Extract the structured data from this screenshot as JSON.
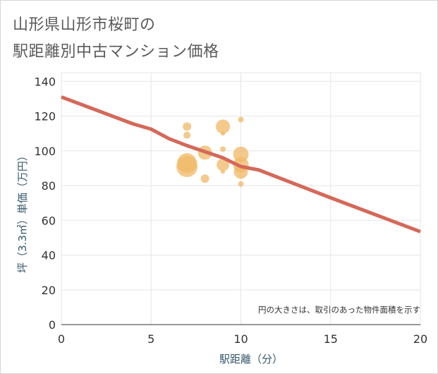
{
  "title_line1": "山形県山形市桜町の",
  "title_line2": "駅距離別中古マンション価格",
  "chart_data": {
    "type": "scatter",
    "xlabel": "駅距離（分）",
    "ylabel": "坪（3.3㎡）単価（万円）",
    "xlim": [
      0,
      20
    ],
    "ylim": [
      0,
      145
    ],
    "x_ticks": [
      0,
      5,
      10,
      15,
      20
    ],
    "y_ticks": [
      0,
      20,
      40,
      60,
      80,
      100,
      120,
      140
    ],
    "x_tick_labels": [
      "0",
      "5",
      "10",
      "15",
      "20"
    ],
    "y_tick_labels": [
      "0",
      "20",
      "40",
      "60",
      "80",
      "100",
      "120",
      "140"
    ],
    "grid": true,
    "note": "円の大きさは、取引のあった物件面積を示す",
    "bubble_color": "#f0b865",
    "line_color": "#d4695a",
    "bubbles": [
      {
        "x": 7,
        "y": 114,
        "size": 6
      },
      {
        "x": 7,
        "y": 109,
        "size": 5
      },
      {
        "x": 7,
        "y": 93,
        "size": 14
      },
      {
        "x": 7,
        "y": 91,
        "size": 15
      },
      {
        "x": 8,
        "y": 99,
        "size": 10
      },
      {
        "x": 8,
        "y": 84,
        "size": 6
      },
      {
        "x": 9,
        "y": 114,
        "size": 10
      },
      {
        "x": 9,
        "y": 110,
        "size": 3
      },
      {
        "x": 9,
        "y": 101,
        "size": 4
      },
      {
        "x": 9,
        "y": 92,
        "size": 9
      },
      {
        "x": 9,
        "y": 88,
        "size": 3
      },
      {
        "x": 10,
        "y": 118,
        "size": 4
      },
      {
        "x": 10,
        "y": 98,
        "size": 11
      },
      {
        "x": 10,
        "y": 92,
        "size": 11
      },
      {
        "x": 10,
        "y": 88,
        "size": 10
      },
      {
        "x": 10,
        "y": 81,
        "size": 4
      }
    ],
    "trend_line": {
      "name": "trend",
      "points": [
        {
          "x": 0,
          "y": 131
        },
        {
          "x": 4,
          "y": 115.5
        },
        {
          "x": 5,
          "y": 112.5
        },
        {
          "x": 6,
          "y": 107
        },
        {
          "x": 7,
          "y": 103
        },
        {
          "x": 8,
          "y": 99.5
        },
        {
          "x": 9,
          "y": 96
        },
        {
          "x": 10,
          "y": 91
        },
        {
          "x": 11,
          "y": 89
        },
        {
          "x": 15,
          "y": 73
        },
        {
          "x": 20,
          "y": 53.5
        }
      ]
    }
  }
}
